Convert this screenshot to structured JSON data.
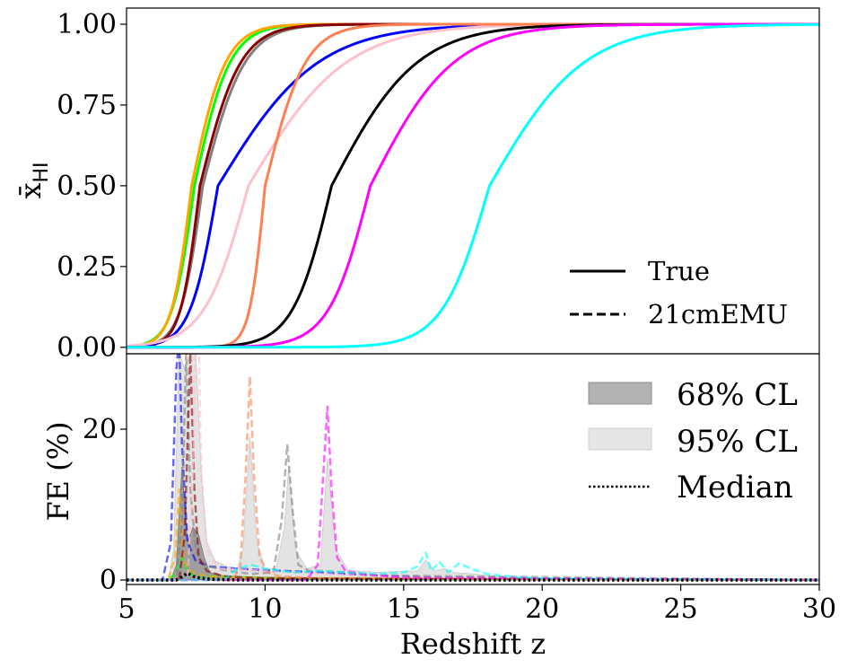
{
  "chart_data": [
    {
      "type": "line",
      "panel": "top",
      "ylabel": "x̄HI",
      "ylabel_main": "x̄",
      "ylabel_sub": "HI",
      "xlim": [
        5,
        30
      ],
      "ylim": [
        -0.02,
        1.05
      ],
      "y_ticks": [
        "0.00",
        "0.25",
        "0.50",
        "0.75",
        "1.00"
      ],
      "legend": {
        "placement": "lower-right",
        "entries": [
          "True",
          "21cmEMU"
        ]
      },
      "series": [
        {
          "color": "#00ff00",
          "z50": 7.45,
          "w": 0.4,
          "skew": 1.6
        },
        {
          "color": "#ffa500",
          "z50": 7.35,
          "w": 0.36,
          "skew": 1.7
        },
        {
          "color": "#808080",
          "z50": 7.75,
          "w": 0.4,
          "skew": 1.9
        },
        {
          "color": "#8b0000",
          "z50": 7.65,
          "w": 0.35,
          "skew": 2.1
        },
        {
          "color": "#0000ff",
          "z50": 8.3,
          "w": 0.5,
          "skew": 3.6
        },
        {
          "color": "#ffc0cb",
          "z50": 9.4,
          "w": 0.8,
          "skew": 2.2
        },
        {
          "color": "#ff7f50",
          "z50": 10.0,
          "w": 0.28,
          "skew": 2.6
        },
        {
          "color": "#000000",
          "z50": 12.4,
          "w": 0.7,
          "skew": 2.2
        },
        {
          "color": "#ff00ff",
          "z50": 13.8,
          "w": 0.75,
          "skew": 2.0
        },
        {
          "color": "#00ffff",
          "z50": 18.1,
          "w": 0.85,
          "skew": 2.0
        }
      ]
    },
    {
      "type": "area",
      "panel": "bottom",
      "xlabel": "Redshift z",
      "ylabel": "FE (%)",
      "xlim": [
        5,
        30
      ],
      "ylim": [
        -0.6,
        30
      ],
      "x_ticks": [
        "5",
        "10",
        "15",
        "20",
        "25",
        "30"
      ],
      "y_ticks": [
        "0",
        "20"
      ],
      "legend": {
        "placement": "upper-right",
        "entries": [
          "68% CL",
          "95% CL",
          "Median"
        ]
      },
      "band68": {
        "x": [
          5,
          6.6,
          6.8,
          7.0,
          7.2,
          7.4,
          7.6,
          7.8,
          8.0,
          8.4,
          9,
          12,
          15,
          30
        ],
        "y": [
          0,
          0,
          2,
          15,
          5,
          7,
          6,
          3,
          1,
          0.6,
          0.4,
          0.3,
          0.2,
          0
        ]
      },
      "band95": {
        "x": [
          5,
          6.5,
          6.7,
          6.9,
          7.1,
          7.3,
          7.5,
          7.7,
          7.9,
          8.2,
          8.6,
          9.0,
          9.2,
          9.45,
          9.7,
          10.0,
          10.4,
          10.7,
          10.85,
          11.1,
          11.5,
          12.0,
          12.25,
          12.55,
          13.0,
          14.0,
          15.5,
          15.8,
          16.1,
          16.5,
          16.8,
          17.5,
          18.5,
          20,
          30
        ],
        "y": [
          0,
          0,
          4,
          30,
          28,
          30,
          30,
          14,
          5,
          2.5,
          1.8,
          1.5,
          4,
          19,
          5,
          1.5,
          1.5,
          7,
          15,
          4,
          1.5,
          2,
          16,
          4,
          1.3,
          1.0,
          1.2,
          2.6,
          1.2,
          1.5,
          1.0,
          0.8,
          0.4,
          0.2,
          0
        ]
      },
      "median": {
        "x": [
          5,
          6.8,
          7.0,
          7.2,
          7.4,
          7.6,
          8,
          9,
          30
        ],
        "y": [
          0,
          0,
          0.4,
          0.9,
          0.5,
          0.3,
          0.1,
          0,
          0
        ]
      },
      "series": [
        {
          "color": "#0000ff",
          "x": [
            5,
            6.3,
            6.6,
            6.8,
            6.9,
            7.0,
            7.2,
            7.5,
            8,
            9,
            10,
            12,
            14,
            16,
            30
          ],
          "y": [
            0,
            0,
            5,
            28,
            32,
            18,
            5,
            2.5,
            1.8,
            1.5,
            1.3,
            1.0,
            0.6,
            0.3,
            0
          ]
        },
        {
          "color": "#00ff00",
          "x": [
            5,
            6.5,
            6.8,
            7.0,
            7.2,
            7.4,
            7.6,
            8.0,
            9,
            11,
            30
          ],
          "y": [
            0,
            0,
            1,
            3,
            1.2,
            0.6,
            0.3,
            0.5,
            0.4,
            0.2,
            0
          ]
        },
        {
          "color": "#ffa500",
          "x": [
            5,
            6.5,
            6.75,
            6.9,
            7.05,
            7.2,
            7.5,
            8,
            9,
            30
          ],
          "y": [
            0,
            0,
            3,
            12,
            3,
            1.5,
            0.8,
            0.5,
            0.3,
            0
          ]
        },
        {
          "color": "#808080",
          "x": [
            5,
            6.8,
            7.0,
            7.15,
            7.3,
            7.5,
            7.8,
            8.5,
            9.5,
            10.3,
            10.6,
            10.8,
            11.0,
            11.2,
            11.6,
            12,
            13,
            14,
            30
          ],
          "y": [
            0,
            0,
            8,
            30,
            12,
            4,
            2,
            1.3,
            0.8,
            1.0,
            8,
            18,
            9,
            2,
            1.2,
            1.2,
            1.0,
            0.6,
            0
          ]
        },
        {
          "color": "#8b0000",
          "x": [
            5,
            6.9,
            7.1,
            7.3,
            7.45,
            7.6,
            7.9,
            8.5,
            10,
            30
          ],
          "y": [
            0,
            0,
            6,
            30,
            12,
            3,
            1.2,
            0.5,
            0.2,
            0
          ]
        },
        {
          "color": "#ffc0cb",
          "x": [
            5,
            7.2,
            7.4,
            7.5,
            7.6,
            7.7,
            7.9,
            8.3,
            9,
            10,
            12,
            14,
            16,
            30
          ],
          "y": [
            0,
            0,
            14,
            32,
            32,
            14,
            4,
            1.5,
            1.4,
            1.2,
            0.8,
            0.5,
            0.2,
            0
          ]
        },
        {
          "color": "#ff7f50",
          "x": [
            5,
            8.8,
            9.1,
            9.3,
            9.45,
            9.6,
            9.8,
            10.1,
            10.5,
            12,
            30
          ],
          "y": [
            0,
            0,
            1.5,
            14,
            27,
            14,
            3,
            1.0,
            0.5,
            0.2,
            0
          ]
        },
        {
          "color": "#ff00ff",
          "x": [
            5,
            11.5,
            11.9,
            12.1,
            12.25,
            12.4,
            12.6,
            12.9,
            13.5,
            15,
            30
          ],
          "y": [
            0,
            0,
            2,
            14,
            23,
            12,
            3,
            1.2,
            0.8,
            0.3,
            0
          ]
        },
        {
          "color": "#00ffff",
          "x": [
            5,
            8.5,
            9,
            9.5,
            10,
            11,
            12,
            13,
            14,
            15,
            15.5,
            15.8,
            16.0,
            16.3,
            16.6,
            17.0,
            17.5,
            18,
            19,
            20,
            30
          ],
          "y": [
            0,
            0,
            1.5,
            2.0,
            1.5,
            1.0,
            1.2,
            1.0,
            0.8,
            1.0,
            1.8,
            3.6,
            1.2,
            2.4,
            1.0,
            2.2,
            1.4,
            0.8,
            0.4,
            0.2,
            0
          ]
        }
      ]
    }
  ]
}
